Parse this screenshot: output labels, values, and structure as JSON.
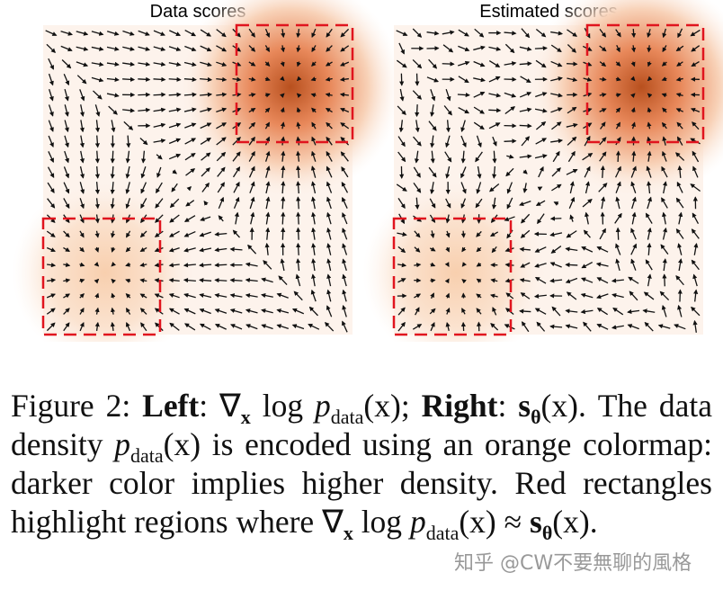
{
  "figure": {
    "panels": [
      {
        "title": "Data scores"
      },
      {
        "title": "Estimated scores"
      }
    ]
  },
  "caption": {
    "parts": [
      "Figure 2:",
      "Left",
      ":",
      "∇",
      "x",
      "log",
      "p",
      "data",
      "(x);",
      "Right",
      ":",
      "s",
      "θ",
      "(x).",
      "The data density",
      "p",
      "data",
      "(x)",
      "is encoded using an orange colormap: darker color implies higher density. Red rectangles highlight regions where",
      "∇",
      "x",
      "log",
      "p",
      "data",
      "(x) ≈",
      "s",
      "θ",
      "(x)."
    ]
  },
  "watermark": "知乎 @CW不要無聊的風格"
}
